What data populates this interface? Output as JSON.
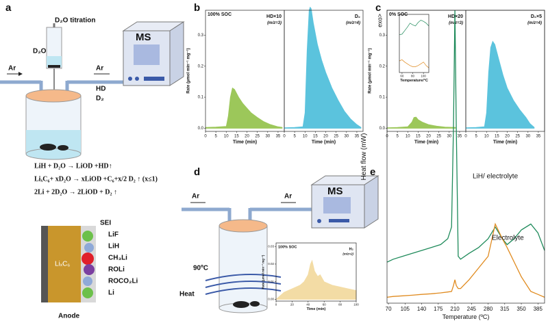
{
  "panels": {
    "a": {
      "label": "a",
      "titration": "D₂O titration",
      "d2o": "D₂O",
      "ar_in": "Ar",
      "ar_out": "Ar",
      "hd": "HD",
      "d2": "D₂",
      "ms": "MS",
      "equations": [
        "LiH + D₂O → LiOD +HD↑",
        "LiₓC₆+ xD₂O → xLiOD +C₆+x/2 D₂ ↑  (x≤1)",
        "2Li + 2D₂O → 2LiOD + D₂ ↑"
      ],
      "sei": "SEI",
      "layers": [
        "LiF",
        "LiH",
        "CH₃Li",
        "ROLi",
        "ROCO₂Li",
        "Li"
      ],
      "electrode": "LiₓC₆",
      "anode": "Anode"
    },
    "b": {
      "label": "b"
    },
    "c": {
      "label": "c"
    },
    "d": {
      "label": "d",
      "ar_in": "Ar",
      "ar_out": "Ar",
      "ms": "MS",
      "temp": "90ºC",
      "heat": "Heat"
    },
    "e": {
      "label": "e"
    }
  },
  "chart_data": [
    {
      "type": "area",
      "title": "100% SOC",
      "y_label": "Rate (μmol min⁻¹ mg⁻¹)",
      "x_label": "Time (min)",
      "xlim": [
        0,
        38
      ],
      "ylim": [
        -0.01,
        0.38
      ],
      "xticks": [
        0,
        5,
        10,
        15,
        20,
        25,
        30,
        35
      ],
      "yticks": [
        {
          "value": 0,
          "label": "0.0"
        },
        0.1,
        0.2,
        0.3
      ],
      "x": [
        0,
        5,
        10,
        11,
        12,
        13,
        14,
        16,
        18,
        20,
        22,
        25,
        28,
        31,
        35,
        37
      ],
      "series": [
        {
          "name": "HD×10",
          "annotation": "(m/z=3)",
          "color": "#9cc75a",
          "values": [
            0.003,
            0.004,
            0.006,
            0.04,
            0.1,
            0.13,
            0.125,
            0.1,
            0.08,
            0.065,
            0.05,
            0.035,
            0.022,
            0.013,
            0.005,
            0.003
          ]
        }
      ]
    },
    {
      "type": "area",
      "x_label": "Time (min)",
      "xlim": [
        0,
        38
      ],
      "ylim": [
        -0.01,
        0.38
      ],
      "xticks": [
        0,
        5,
        10,
        15,
        20,
        25,
        30,
        35
      ],
      "x": [
        0,
        5,
        9,
        10,
        11,
        12,
        12.5,
        13,
        14,
        16,
        18,
        20,
        23,
        26,
        29,
        32,
        35,
        37
      ],
      "series": [
        {
          "name": "D₂",
          "annotation": "(m/z=4)",
          "color": "#5bc3dd",
          "values": [
            0.002,
            0.003,
            0.005,
            0.05,
            0.25,
            0.38,
            0.39,
            0.385,
            0.34,
            0.27,
            0.22,
            0.18,
            0.13,
            0.09,
            0.055,
            0.03,
            0.012,
            0.003
          ]
        }
      ]
    },
    {
      "type": "area",
      "title": "0% SOC",
      "y_label": "Rate (μmol min⁻¹ mg⁻¹)",
      "x_label": "Time (min)",
      "xlim": [
        0,
        38
      ],
      "ylim": [
        -0.01,
        0.38
      ],
      "xticks": [
        0,
        5,
        10,
        15,
        20,
        25,
        30,
        35
      ],
      "yticks": [
        {
          "value": 0,
          "label": "0.0"
        },
        0.1,
        0.2,
        0.3
      ],
      "x": [
        0,
        5,
        10,
        12,
        13,
        14,
        15,
        17,
        20,
        24,
        28,
        33
      ],
      "series": [
        {
          "name": "HD×20",
          "annotation": "(m/z=3)",
          "color": "#9cc75a",
          "values": [
            0.002,
            0.003,
            0.005,
            0.02,
            0.035,
            0.036,
            0.028,
            0.02,
            0.012,
            0.007,
            0.004,
            0.003
          ]
        }
      ]
    },
    {
      "type": "area",
      "x_label": "Time (min)",
      "xlim": [
        0,
        38
      ],
      "ylim": [
        -0.01,
        0.38
      ],
      "xticks": [
        0,
        5,
        10,
        15,
        20,
        25,
        30,
        35
      ],
      "x": [
        0,
        5,
        9,
        10,
        11,
        12,
        13,
        14,
        16,
        18,
        20,
        23,
        26,
        29,
        31,
        33
      ],
      "series": [
        {
          "name": "D₂×5",
          "annotation": "(m/z=4)",
          "color": "#5bc3dd",
          "values": [
            0.002,
            0.003,
            0.005,
            0.05,
            0.18,
            0.26,
            0.28,
            0.27,
            0.22,
            0.17,
            0.13,
            0.09,
            0.06,
            0.035,
            0.015,
            0.003
          ]
        }
      ]
    },
    {
      "type": "area",
      "title": "100% SOC",
      "y_label": "Rate (μmol min⁻¹ mg⁻¹)",
      "x_label": "Time (min)",
      "xlim": [
        0,
        100
      ],
      "ylim": [
        -0.001,
        0.032
      ],
      "xticks": [
        0,
        20,
        40,
        60,
        80,
        100
      ],
      "yticks": [
        {
          "value": 0,
          "label": "0.00"
        },
        0.01,
        0.02,
        0.03
      ],
      "x": [
        0,
        10,
        20,
        30,
        35,
        40,
        43,
        45,
        48,
        52,
        55,
        60,
        70,
        80,
        90,
        100
      ],
      "series": [
        {
          "name": "H₂",
          "annotation": "(m/z=2)",
          "color": "#f3dca5",
          "values": [
            0,
            0.004,
            0.006,
            0.008,
            0.01,
            0.014,
            0.02,
            0.022,
            0.016,
            0.013,
            0.014,
            0.01,
            0.008,
            0.007,
            0.006,
            0.005
          ]
        }
      ]
    },
    {
      "type": "line",
      "y_label": "Heat flow (mW)",
      "y_annotation": "exo>",
      "x_label": "Temperature (ºC)",
      "xlim": [
        67,
        399
      ],
      "ylim": [
        0,
        100
      ],
      "xticks": [
        70,
        105,
        140,
        175,
        210,
        245,
        280,
        315,
        350,
        385
      ],
      "x": [
        67,
        80,
        100,
        120,
        140,
        160,
        180,
        195,
        203,
        207,
        210,
        213,
        217,
        222,
        240,
        260,
        280,
        295,
        310,
        320,
        335,
        350,
        370,
        385,
        399
      ],
      "series": [
        {
          "name": "LiH/ electrolyte",
          "color": "#1e8a5a",
          "values": [
            14,
            15,
            16,
            17,
            18,
            19,
            20,
            22,
            26,
            60,
            100,
            60,
            16,
            15,
            17,
            19,
            22,
            26,
            22,
            20,
            22,
            25,
            27,
            24,
            18
          ]
        },
        {
          "name": "Electrolyte",
          "color": "#e08a1e",
          "values": [
            2,
            2.3,
            2.5,
            2.7,
            3,
            3.2,
            3.5,
            3.8,
            4,
            6,
            8,
            6,
            5,
            5,
            8,
            12,
            16,
            27,
            22,
            19,
            14,
            9,
            4,
            3,
            2
          ]
        }
      ]
    },
    {
      "type": "line",
      "x_label": "Temperature/°C",
      "xlim": [
        55,
        110
      ],
      "ylim": [
        0,
        100
      ],
      "xticks": [
        60,
        80,
        100
      ],
      "x": [
        55,
        60,
        65,
        70,
        75,
        80,
        85,
        90,
        95,
        100,
        105,
        110
      ],
      "series": [
        {
          "color": "#1e8a5a",
          "values": [
            65,
            66,
            72,
            78,
            85,
            82,
            80,
            86,
            90,
            88,
            85,
            80
          ]
        },
        {
          "color": "#e08a1e",
          "values": [
            20,
            22,
            18,
            15,
            12,
            10,
            10,
            12,
            15,
            18,
            12,
            8
          ]
        }
      ]
    }
  ]
}
